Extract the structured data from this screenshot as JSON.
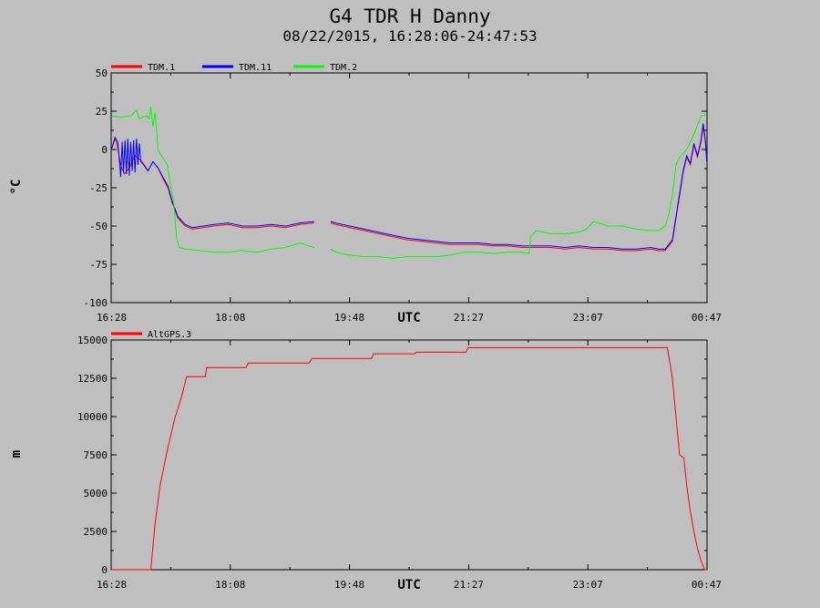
{
  "title": "G4 TDR H Danny",
  "subtitle": "08/22/2015, 16:28:06-24:47:53",
  "chart_data": [
    {
      "type": "line",
      "ylabel": "°C",
      "xlabel": "UTC",
      "ylim": [
        -100,
        50
      ],
      "yticks": [
        "50",
        "25",
        "0",
        "-25",
        "-50",
        "-75",
        "-100"
      ],
      "xlim_hours": [
        16.4667,
        24.7833
      ],
      "xticks": [
        "16:28",
        "18:08",
        "19:48",
        "21:27",
        "23:07",
        "00:47"
      ],
      "legend": "top-left",
      "series": [
        {
          "name": "TDM.1",
          "color": "#ff0000",
          "x": [
            16.47,
            16.52,
            16.55,
            16.6,
            16.65,
            16.72,
            16.8,
            16.9,
            16.98,
            17.05,
            17.12,
            17.2,
            17.26,
            17.32,
            17.4,
            17.5,
            17.6,
            17.75,
            17.9,
            18.1,
            18.3,
            18.5,
            18.7,
            18.9,
            19.1,
            19.3,
            null,
            19.53,
            19.6,
            19.8,
            20.0,
            20.2,
            20.4,
            20.6,
            20.8,
            21.0,
            21.2,
            21.4,
            21.6,
            21.8,
            22.0,
            22.2,
            22.4,
            22.6,
            22.8,
            23.0,
            23.2,
            23.4,
            23.6,
            23.8,
            24.0,
            24.1,
            24.2,
            24.3,
            24.35,
            24.4,
            24.45,
            24.5,
            24.55,
            24.6,
            24.65,
            24.7,
            24.73,
            24.76,
            24.78
          ],
          "values": [
            0,
            7,
            3,
            -10,
            -16,
            -12,
            -4,
            -8,
            -14,
            -8,
            -12,
            -20,
            -25,
            -35,
            -45,
            -50,
            -52,
            -51,
            -50,
            -49,
            -51,
            -51,
            -50,
            -51,
            -49,
            -48,
            null,
            -48,
            -49,
            -51,
            -53,
            -55,
            -57,
            -59,
            -60,
            -61,
            -62,
            -62,
            -62,
            -63,
            -63,
            -64,
            -64,
            -64,
            -65,
            -64,
            -65,
            -65,
            -66,
            -66,
            -65,
            -66,
            -66,
            -60,
            -45,
            -30,
            -15,
            -5,
            -10,
            3,
            -5,
            5,
            15,
            5,
            -5
          ]
        },
        {
          "name": "TDM.11",
          "color": "#0000ff",
          "x": [
            16.47,
            16.52,
            16.56,
            16.6,
            16.62,
            16.64,
            16.66,
            16.68,
            16.7,
            16.72,
            16.74,
            16.76,
            16.78,
            16.8,
            16.82,
            16.84,
            16.86,
            16.88,
            16.92,
            16.98,
            17.05,
            17.12,
            17.2,
            17.26,
            17.32,
            17.4,
            17.5,
            17.6,
            17.75,
            17.9,
            18.1,
            18.3,
            18.5,
            18.7,
            18.9,
            19.1,
            19.3,
            null,
            19.53,
            19.6,
            19.8,
            20.0,
            20.2,
            20.4,
            20.6,
            20.8,
            21.0,
            21.2,
            21.4,
            21.6,
            21.8,
            22.0,
            22.2,
            22.4,
            22.6,
            22.8,
            23.0,
            23.2,
            23.4,
            23.6,
            23.8,
            24.0,
            24.1,
            24.2,
            24.3,
            24.35,
            24.4,
            24.45,
            24.5,
            24.55,
            24.6,
            24.65,
            24.7,
            24.73,
            24.76,
            24.78
          ],
          "values": [
            0,
            8,
            5,
            -18,
            5,
            -15,
            6,
            -16,
            7,
            -17,
            5,
            -14,
            6,
            -15,
            7,
            -10,
            4,
            -8,
            -10,
            -14,
            -8,
            -12,
            -19,
            -24,
            -34,
            -44,
            -49,
            -51,
            -50,
            -49,
            -48,
            -50,
            -50,
            -49,
            -50,
            -48,
            -47,
            null,
            -47,
            -48,
            -50,
            -52,
            -54,
            -56,
            -58,
            -59,
            -60,
            -61,
            -61,
            -61,
            -62,
            -62,
            -63,
            -63,
            -63,
            -64,
            -63,
            -64,
            -64,
            -65,
            -65,
            -64,
            -65,
            -65,
            -59,
            -44,
            -29,
            -14,
            -4,
            -9,
            4,
            -4,
            6,
            17,
            6,
            -8
          ]
        },
        {
          "name": "TDM.2",
          "color": "#00ff00",
          "x": [
            16.47,
            16.6,
            16.75,
            16.82,
            16.86,
            16.9,
            16.96,
            17.0,
            17.02,
            17.05,
            17.08,
            17.12,
            17.18,
            17.25,
            17.3,
            17.34,
            17.38,
            17.42,
            17.5,
            17.7,
            17.9,
            18.1,
            18.3,
            18.5,
            18.7,
            18.9,
            19.1,
            19.3,
            null,
            19.53,
            19.6,
            19.8,
            20.0,
            20.2,
            20.4,
            20.6,
            20.8,
            21.0,
            21.2,
            21.4,
            21.6,
            21.8,
            22.0,
            22.2,
            22.3,
            22.32,
            22.4,
            22.6,
            22.8,
            23.0,
            23.1,
            23.2,
            23.4,
            23.6,
            23.8,
            24.0,
            24.1,
            24.2,
            24.25,
            24.3,
            24.35,
            24.4,
            24.5,
            24.6,
            24.7,
            24.78
          ],
          "values": [
            22,
            21,
            22,
            26,
            20,
            21,
            22,
            20,
            28,
            15,
            24,
            0,
            -5,
            -10,
            -25,
            -35,
            -58,
            -64,
            -65,
            -66,
            -67,
            -67,
            -66,
            -67,
            -65,
            -64,
            -61,
            -64,
            null,
            -65,
            -67,
            -69,
            -70,
            -70,
            -71,
            -70,
            -70,
            -70,
            -69,
            -67,
            -67,
            -68,
            -67,
            -67,
            -68,
            -57,
            -53,
            -55,
            -55,
            -54,
            -52,
            -47,
            -50,
            -50,
            -52,
            -53,
            -53,
            -50,
            -42,
            -30,
            -10,
            -5,
            0,
            10,
            22,
            23
          ]
        }
      ]
    },
    {
      "type": "line",
      "ylabel": "m",
      "xlabel": "UTC",
      "ylim": [
        0,
        15000
      ],
      "yticks": [
        "15000",
        "12500",
        "10000",
        "7500",
        "5000",
        "2500",
        "0"
      ],
      "xlim_hours": [
        16.4667,
        24.7833
      ],
      "xticks": [
        "16:28",
        "18:08",
        "19:48",
        "21:27",
        "23:07",
        "00:47"
      ],
      "legend": "top-left",
      "series": [
        {
          "name": "AltGPS.3",
          "color": "#ff0000",
          "x": [
            16.47,
            17.02,
            17.08,
            17.15,
            17.25,
            17.35,
            17.45,
            17.52,
            17.58,
            17.78,
            17.8,
            18.35,
            18.38,
            19.23,
            19.27,
            20.1,
            20.13,
            20.7,
            20.73,
            21.42,
            21.45,
            22.5,
            23.0,
            23.6,
            24.23,
            24.3,
            24.35,
            24.4,
            24.46,
            24.5,
            24.55,
            24.6,
            24.65,
            24.7,
            24.75,
            24.78
          ],
          "values": [
            0,
            0,
            3000,
            5500,
            7800,
            9800,
            11300,
            12600,
            12600,
            12600,
            13200,
            13200,
            13500,
            13500,
            13800,
            13800,
            14100,
            14100,
            14200,
            14200,
            14500,
            14500,
            14500,
            14500,
            14500,
            12500,
            10000,
            7500,
            7300,
            5500,
            3800,
            2500,
            1400,
            600,
            0,
            0
          ]
        }
      ]
    }
  ]
}
